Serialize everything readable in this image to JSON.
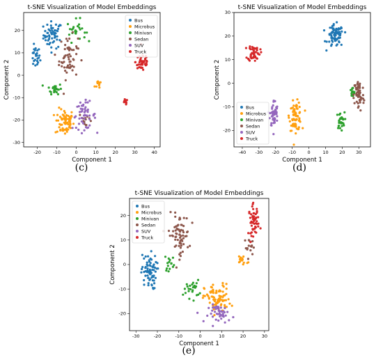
{
  "panel_labels": [
    "(c)",
    "(d)",
    "(e)"
  ],
  "colors": {
    "Bus": "#1f77b4",
    "Microbus": "#ff9f0e",
    "Minivan": "#2ca02c",
    "Sedan": "#8c564b",
    "SUV": "#9467bd",
    "Truck": "#d62728"
  },
  "chart_data": [
    {
      "type": "scatter",
      "panel": "(c)",
      "title": "t-SNE Visualization of Model Embeddings",
      "xlabel": "Component 1",
      "ylabel": "Component 2",
      "xlim": [
        -27,
        43
      ],
      "ylim": [
        -32,
        28
      ],
      "xticks": [
        -20,
        -10,
        0,
        10,
        20,
        30,
        40
      ],
      "yticks": [
        -30,
        -20,
        -10,
        0,
        10,
        20
      ],
      "legend": "top-right",
      "series": [
        {
          "name": "Bus",
          "clusters": [
            {
              "x": -12,
              "y": 18,
              "sx": 4,
              "sy": 5,
              "n": 55
            },
            {
              "x": -21,
              "y": 8,
              "sx": 2,
              "sy": 4,
              "n": 25
            }
          ]
        },
        {
          "name": "Microbus",
          "clusters": [
            {
              "x": -6,
              "y": -21,
              "sx": 4,
              "sy": 5,
              "n": 70
            },
            {
              "x": 12,
              "y": -4,
              "sx": 2,
              "sy": 2,
              "n": 10
            }
          ]
        },
        {
          "name": "Minivan",
          "clusters": [
            {
              "x": -11,
              "y": -6,
              "sx": 3,
              "sy": 2,
              "n": 25
            },
            {
              "x": 0,
              "y": 20,
              "sx": 4,
              "sy": 4,
              "n": 25
            }
          ]
        },
        {
          "name": "Sedan",
          "clusters": [
            {
              "x": -4,
              "y": 8,
              "sx": 4,
              "sy": 8,
              "n": 60
            },
            {
              "x": 5,
              "y": -20,
              "sx": 3,
              "sy": 3,
              "n": 12
            }
          ]
        },
        {
          "name": "SUV",
          "clusters": [
            {
              "x": 4,
              "y": -18,
              "sx": 5,
              "sy": 5,
              "n": 50
            }
          ]
        },
        {
          "name": "Truck",
          "clusters": [
            {
              "x": 34,
              "y": 6,
              "sx": 3,
              "sy": 4,
              "n": 45
            },
            {
              "x": 25,
              "y": -12,
              "sx": 1,
              "sy": 1,
              "n": 10
            }
          ]
        }
      ]
    },
    {
      "type": "scatter",
      "panel": "(d)",
      "title": "t-SNE Visualization of Model Embeddings",
      "xlabel": "Component 1",
      "ylabel": "Component 2",
      "xlim": [
        -45,
        37
      ],
      "ylim": [
        -27,
        30
      ],
      "xticks": [
        -40,
        -30,
        -20,
        -10,
        0,
        10,
        20,
        30
      ],
      "yticks": [
        -20,
        -10,
        0,
        10,
        20,
        30
      ],
      "legend": "bottom-left",
      "series": [
        {
          "name": "Bus",
          "clusters": [
            {
              "x": 16,
              "y": 20,
              "sx": 4,
              "sy": 4,
              "n": 80
            }
          ]
        },
        {
          "name": "Microbus",
          "clusters": [
            {
              "x": -8,
              "y": -14,
              "sx": 3,
              "sy": 5,
              "n": 75
            }
          ]
        },
        {
          "name": "Minivan",
          "clusters": [
            {
              "x": 19,
              "y": -16,
              "sx": 2,
              "sy": 3,
              "n": 30
            },
            {
              "x": 26,
              "y": -4,
              "sx": 1.5,
              "sy": 2,
              "n": 15
            }
          ]
        },
        {
          "name": "Sedan",
          "clusters": [
            {
              "x": 30,
              "y": -5,
              "sx": 2.5,
              "sy": 6,
              "n": 60
            }
          ]
        },
        {
          "name": "SUV",
          "clusters": [
            {
              "x": -21,
              "y": -13,
              "sx": 2,
              "sy": 5,
              "n": 50
            }
          ]
        },
        {
          "name": "Truck",
          "clusters": [
            {
              "x": -33,
              "y": 13,
              "sx": 3,
              "sy": 3,
              "n": 50
            }
          ]
        }
      ]
    },
    {
      "type": "scatter",
      "panel": "(e)",
      "title": "t-SNE Visualization of Model Embeddings",
      "xlabel": "Component 1",
      "ylabel": "Component 2",
      "xlim": [
        -33,
        32
      ],
      "ylim": [
        -27,
        27
      ],
      "xticks": [
        -30,
        -20,
        -10,
        0,
        10,
        20,
        30
      ],
      "yticks": [
        -20,
        -10,
        0,
        10,
        20
      ],
      "legend": "top-left",
      "series": [
        {
          "name": "Bus",
          "clusters": [
            {
              "x": -24,
              "y": -3,
              "sx": 3,
              "sy": 6,
              "n": 70
            }
          ]
        },
        {
          "name": "Microbus",
          "clusters": [
            {
              "x": 8,
              "y": -14,
              "sx": 5,
              "sy": 5,
              "n": 80
            },
            {
              "x": 20,
              "y": 2,
              "sx": 3,
              "sy": 2,
              "n": 15
            }
          ]
        },
        {
          "name": "Minivan",
          "clusters": [
            {
              "x": -4,
              "y": -10,
              "sx": 3,
              "sy": 3,
              "n": 25
            },
            {
              "x": -14,
              "y": 1,
              "sx": 2,
              "sy": 3,
              "n": 15
            }
          ]
        },
        {
          "name": "Sedan",
          "clusters": [
            {
              "x": -10,
              "y": 12,
              "sx": 4,
              "sy": 7,
              "n": 70
            },
            {
              "x": 23,
              "y": 7,
              "sx": 2,
              "sy": 3,
              "n": 15
            }
          ]
        },
        {
          "name": "SUV",
          "clusters": [
            {
              "x": 10,
              "y": -20,
              "sx": 5,
              "sy": 3,
              "n": 45
            }
          ]
        },
        {
          "name": "Truck",
          "clusters": [
            {
              "x": 25,
              "y": 18,
              "sx": 2,
              "sy": 5,
              "n": 55
            }
          ]
        }
      ]
    }
  ]
}
